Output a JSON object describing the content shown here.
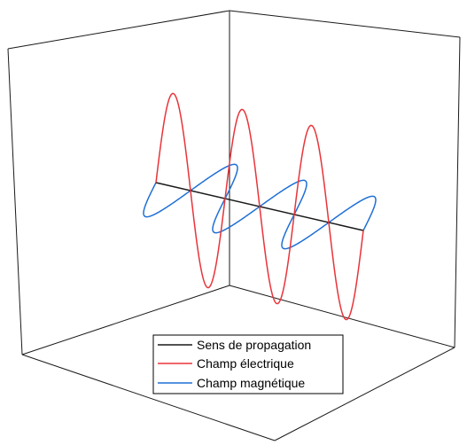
{
  "legend": {
    "items": [
      {
        "label": "Sens de propagation",
        "color": "#1a1a1a"
      },
      {
        "label": "Champ électrique",
        "color": "#e8343a"
      },
      {
        "label": "Champ magnétique",
        "color": "#1f6fd6"
      }
    ]
  },
  "wave": {
    "periods": 3
  }
}
